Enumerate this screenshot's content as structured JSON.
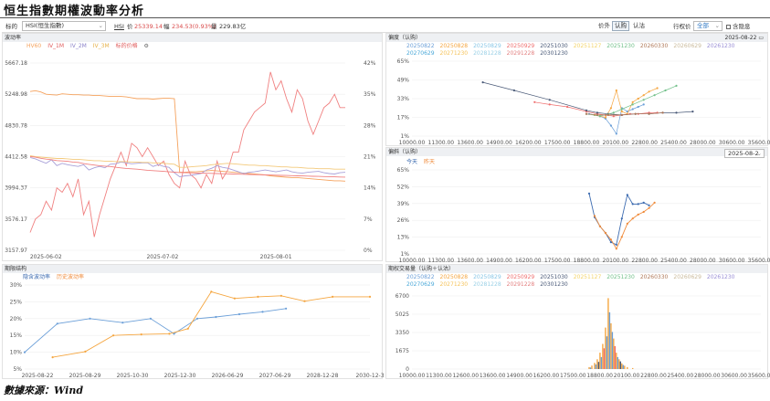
{
  "title": "恒生指數期權波動率分析",
  "footer": "數據來源：Wind",
  "toolbar": {
    "underlying_label": "标的",
    "underlying_value": "HSI(恒生指數)",
    "hsi_label": "HSI",
    "price_label": "价",
    "price_value": "25339.14",
    "change_label": "幅",
    "change_value": "234.53(0.93%)",
    "volume_label": "量",
    "volume_value": "229.83亿",
    "seg_price": "价外",
    "seg_call": "认购",
    "seg_put": "认沽",
    "strike_label": "行权价",
    "strike_value": "全部",
    "expired_label": "含隐息",
    "colors": {
      "accent": "#2f78c4",
      "up": "#d94a4a"
    }
  },
  "vol_panel": {
    "title": "波动率",
    "legend": [
      {
        "name": "HV60",
        "color": "#f5a25d"
      },
      {
        "name": "IV_1M",
        "color": "#f08080"
      },
      {
        "name": "IV_2M",
        "color": "#a9a1d9"
      },
      {
        "name": "IV_3M",
        "color": "#f3c97a"
      },
      {
        "name": "标的价格",
        "color": "#f08080"
      }
    ],
    "gear_icon": "gear-icon"
  },
  "skew_panel": {
    "title": "偏度（认购）",
    "date": "2025-08-22"
  },
  "smile_panel": {
    "title": "偏斜（认购）",
    "date": "2025-08-2",
    "legend": [
      {
        "name": "今天",
        "color": "#3c6bb0"
      },
      {
        "name": "昨天",
        "color": "#f08c3c"
      }
    ]
  },
  "term_panel": {
    "title": "期限结构",
    "legend": [
      {
        "name": "隐含波动率",
        "color": "#6b9fd8"
      },
      {
        "name": "历史波动率",
        "color": "#f5a640"
      }
    ]
  },
  "volume_panel": {
    "title": "期权交易量（认购＋认沽）"
  },
  "expiries": [
    {
      "name": "20250822",
      "color": "#6b9fd8"
    },
    {
      "name": "20250828",
      "color": "#f5a640"
    },
    {
      "name": "20250829",
      "color": "#88c6e6"
    },
    {
      "name": "20250929",
      "color": "#ef6e6e"
    },
    {
      "name": "20251030",
      "color": "#4a5a78"
    },
    {
      "name": "20251127",
      "color": "#f3d46a"
    },
    {
      "name": "20251230",
      "color": "#72c08a"
    },
    {
      "name": "20260330",
      "color": "#b07a5a"
    },
    {
      "name": "20260629",
      "color": "#c9b99a"
    },
    {
      "name": "20261230",
      "color": "#9a8fd6"
    },
    {
      "name": "20270629",
      "color": "#4aa8d8"
    },
    {
      "name": "20271230",
      "color": "#f5c35a"
    },
    {
      "name": "20281228",
      "color": "#9ad0e6"
    },
    {
      "name": "20291228",
      "color": "#e38080"
    },
    {
      "name": "20301230",
      "color": "#4a5a78"
    }
  ],
  "chart_data": [
    {
      "type": "line",
      "name": "vol",
      "x_ticks": [
        "2025-06-02",
        "2025-07-02",
        "2025-08-01"
      ],
      "y_left_ticks": [
        "5667.18",
        "5248.98",
        "4830.78",
        "4412.58",
        "3994.37",
        "3576.17",
        "3157.97"
      ],
      "y_right_ticks": [
        "42%",
        "35%",
        "28%",
        "21%",
        "14%",
        "7%",
        "0%"
      ],
      "ylim_left": [
        3157.97,
        5667.18
      ],
      "ylim_right": [
        0,
        42
      ],
      "n": 60,
      "series": [
        {
          "name": "HV60",
          "axis": "right",
          "color": "#f5a25d",
          "values": [
            35.6,
            35.8,
            35.5,
            35.0,
            34.9,
            34.8,
            35.1,
            35.0,
            34.9,
            34.9,
            34.8,
            34.8,
            34.7,
            34.7,
            34.6,
            34.5,
            34.5,
            34.5,
            34.4,
            34.2,
            34.0,
            34.0,
            34.0,
            33.9,
            34.0,
            34.1,
            34.1,
            34.0,
            17.5,
            17.5,
            17.6,
            17.6,
            17.7,
            17.8,
            17.9,
            17.8,
            17.7,
            17.6,
            17.5,
            17.4,
            17.3,
            17.2,
            17.1,
            17.0,
            16.9,
            16.7,
            16.6,
            16.5,
            16.4,
            16.3,
            16.3,
            16.2,
            16.1,
            16.0,
            15.9,
            15.8,
            15.7,
            15.6,
            15.6,
            15.5
          ]
        },
        {
          "name": "IV_1M",
          "axis": "right",
          "color": "#f08080",
          "values": [
            4,
            7,
            8,
            11,
            9,
            14,
            13,
            15,
            12,
            16,
            8,
            11,
            3,
            8,
            12,
            16,
            19,
            22,
            19,
            24,
            23,
            21,
            23,
            21,
            19,
            20,
            17,
            15,
            14,
            20,
            17,
            16,
            14,
            17,
            15,
            20,
            16,
            18,
            22,
            22,
            27,
            29,
            31,
            32,
            33,
            40,
            36,
            38,
            34,
            31,
            36,
            34,
            29,
            26,
            29,
            32,
            33,
            35,
            32,
            32
          ]
        },
        {
          "name": "IV_2M",
          "axis": "right",
          "color": "#a9a1d9",
          "values": [
            20.8,
            20.5,
            20.0,
            19.5,
            20.3,
            19.0,
            19.5,
            19.2,
            19.0,
            18.8,
            19.2,
            18.0,
            18.5,
            18.8,
            18.5,
            19.3,
            19.4,
            19.8,
            19.6,
            19.4,
            19.5,
            19.6,
            19.6,
            18.8,
            19.2,
            18.8,
            18.6,
            17.4,
            16.5,
            16.7,
            16.8,
            17.0,
            17.2,
            18.0,
            18.4,
            19.0,
            18.6,
            18.4,
            18.0,
            17.6,
            17.2,
            17.5,
            17.6,
            17.8,
            18.0,
            17.8,
            17.6,
            17.8,
            18.0,
            17.6,
            17.4,
            17.3,
            17.5,
            17.6,
            17.7,
            17.4,
            17.2,
            17.1,
            17.4,
            17.5
          ]
        },
        {
          "name": "IV_3M",
          "axis": "right",
          "color": "#f3c97a",
          "values": [
            21.2,
            21.0,
            20.9,
            20.8,
            20.7,
            20.6,
            20.6,
            20.5,
            20.4,
            20.4,
            20.3,
            20.2,
            20.1,
            20.1,
            20.0,
            20.0,
            19.9,
            19.9,
            19.9,
            19.8,
            19.8,
            19.7,
            19.7,
            19.6,
            19.6,
            19.5,
            19.4,
            19.3,
            18.6,
            18.6,
            18.7,
            18.8,
            18.9,
            19.0,
            19.2,
            19.3,
            19.4,
            19.5,
            19.4,
            19.3,
            19.2,
            19.1,
            19.1,
            19.0,
            19.0,
            18.9,
            18.8,
            18.7,
            18.7,
            18.6,
            18.6,
            18.5,
            18.4,
            18.4,
            18.3,
            18.3,
            18.3,
            18.2,
            18.2,
            18.2
          ]
        },
        {
          "name": "标的价格",
          "axis": "left",
          "color": "#f08080",
          "values": [
            4412,
            4405,
            4390,
            4380,
            4372,
            4360,
            4355,
            4350,
            4340,
            4335,
            4320,
            4310,
            4300,
            4292,
            4285,
            4280,
            4270,
            4262,
            4255,
            4250,
            4245,
            4238,
            4230,
            4225,
            4220,
            4215,
            4210,
            4205,
            4200,
            4198,
            4196,
            4194,
            4192,
            4190,
            4188,
            4186,
            4184,
            4182,
            4180,
            4178,
            4176,
            4174,
            4172,
            4170,
            4168,
            4166,
            4164,
            4162,
            4160,
            4158,
            4156,
            4154,
            4152,
            4150,
            4148,
            4146,
            4144,
            4142,
            4140,
            4138
          ]
        }
      ]
    },
    {
      "type": "scatter",
      "name": "skew",
      "x_ticks": [
        "10000.00",
        "11300.00",
        "13600.00",
        "14900.00",
        "16200.00",
        "17500.00",
        "18800.00",
        "20100.00",
        "22800.00",
        "25400.00",
        "28000.00",
        "30600.00",
        "35600.00"
      ],
      "y_ticks": [
        "65%",
        "49%",
        "33%",
        "17%",
        "1%"
      ],
      "xlim": [
        10000,
        35600
      ],
      "ylim": [
        1,
        65
      ],
      "series": [
        {
          "name": "20250822",
          "color": "#6b9fd8",
          "x": [
            23000,
            23400,
            23800,
            24200,
            24600,
            25000,
            25400,
            25800,
            26200,
            26600,
            27000
          ],
          "y": [
            20,
            19,
            18,
            16,
            10,
            3,
            25,
            22,
            24,
            26,
            28
          ]
        },
        {
          "name": "20250828",
          "color": "#f5a640",
          "x": [
            23400,
            23800,
            24200,
            24600,
            25000,
            25400,
            25800,
            26200,
            26600,
            27000,
            27400,
            28000
          ],
          "y": [
            19,
            18,
            17,
            25,
            40,
            22,
            20,
            30,
            33,
            36,
            39,
            42
          ]
        },
        {
          "name": "20250929",
          "color": "#ef6e6e",
          "x": [
            19000,
            20100,
            21400,
            22800,
            23600,
            24200,
            24800,
            25400,
            26000,
            26600,
            27400,
            28000
          ],
          "y": [
            30,
            28,
            26,
            22,
            20,
            19,
            18,
            19,
            20,
            20,
            21,
            21
          ]
        },
        {
          "name": "20251030",
          "color": "#4a5a78",
          "x": [
            15200,
            17500,
            20100,
            22800,
            23600,
            24400,
            25400,
            26400,
            27400,
            28400,
            29400,
            30600
          ],
          "y": [
            47,
            40,
            32,
            23,
            21,
            20,
            19,
            20,
            20,
            21,
            21,
            22
          ]
        },
        {
          "name": "20251230",
          "color": "#72c08a",
          "x": [
            22800,
            23800,
            24800,
            25400,
            26200,
            27000,
            27800,
            28600,
            29400
          ],
          "y": [
            20,
            18,
            21,
            24,
            28,
            32,
            36,
            40,
            44
          ]
        },
        {
          "name": "20260330",
          "color": "#b07a5a",
          "x": [
            22800,
            23600,
            24400,
            25400,
            26400,
            27400,
            28400
          ],
          "y": [
            20,
            19,
            19,
            19,
            20,
            20,
            21
          ]
        }
      ]
    },
    {
      "type": "line",
      "name": "smile",
      "x_ticks": [
        "10000.00",
        "11300.00",
        "13600.00",
        "14900.00",
        "16200.00",
        "17500.00",
        "18800.00",
        "20100.00",
        "22800.00",
        "25400.00",
        "28000.00",
        "30600.00",
        "35600.00"
      ],
      "y_ticks": [
        "65%",
        "52%",
        "39%",
        "26%",
        "13%",
        "1%"
      ],
      "xlim": [
        10000,
        35600
      ],
      "ylim": [
        1,
        65
      ],
      "series": [
        {
          "name": "今天",
          "color": "#3c6bb0",
          "x": [
            23000,
            23400,
            23800,
            24200,
            24600,
            25000,
            25400,
            25800,
            26200,
            26600,
            27000,
            27400
          ],
          "y": [
            47,
            29,
            22,
            17,
            10,
            8,
            28,
            46,
            39,
            39,
            40,
            38
          ]
        },
        {
          "name": "昨天",
          "color": "#f08c3c",
          "x": [
            23400,
            23800,
            24200,
            24600,
            25000,
            25400,
            25800,
            26200,
            26600,
            27000,
            27400,
            27800
          ],
          "y": [
            30,
            22,
            17,
            12,
            5,
            14,
            24,
            28,
            31,
            33,
            36,
            40
          ]
        }
      ]
    },
    {
      "type": "line",
      "name": "term",
      "x_ticks": [
        "2025-08-22",
        "2025-08-29",
        "2025-10-30",
        "2025-12-30",
        "2026-06-29",
        "2027-06-29",
        "2028-12-28",
        "2030-12-3"
      ],
      "y_ticks": [
        "30%",
        "25%",
        "20%",
        "15%",
        "10%",
        "5%"
      ],
      "ylim": [
        5,
        30
      ],
      "series": [
        {
          "name": "隐含波动率",
          "color": "#6b9fd8",
          "x": [
            0,
            0.7,
            1.4,
            2.1,
            2.7,
            3.2,
            3.7,
            4.1,
            4.6,
            5.1,
            5.6
          ],
          "y": [
            10.0,
            18.5,
            20.0,
            18.8,
            20.0,
            15.5,
            20.0,
            20.5,
            21.3,
            22.0,
            23.0
          ]
        },
        {
          "name": "历史波动率",
          "color": "#f5a640",
          "x": [
            0.6,
            1.3,
            1.9,
            2.5,
            3.1,
            3.5,
            4.0,
            4.5,
            5.0,
            5.5,
            6.0,
            6.6,
            7.4
          ],
          "y": [
            8.5,
            10.2,
            15.0,
            15.3,
            15.5,
            17.0,
            28.0,
            26.0,
            26.5,
            26.8,
            25.2,
            26.5,
            26.5
          ]
        }
      ]
    },
    {
      "type": "bar",
      "name": "volume",
      "x_ticks": [
        "10000.00",
        "11300.00",
        "12600.00",
        "13600.00",
        "14900.00",
        "16200.00",
        "17500.00",
        "18800.00",
        "20100.00",
        "22800.00",
        "25400.00",
        "28000.00",
        "30600.00",
        "35600.00"
      ],
      "y_ticks": [
        "6700",
        "5025",
        "3350",
        "1675",
        "0"
      ],
      "ylim": [
        0,
        6700
      ],
      "bars": [
        {
          "x": 23000,
          "v": 180,
          "c": "#f5a640"
        },
        {
          "x": 23200,
          "v": 320,
          "c": "#f5a640"
        },
        {
          "x": 23400,
          "v": 560,
          "c": "#f5a640"
        },
        {
          "x": 23600,
          "v": 900,
          "c": "#f5a640"
        },
        {
          "x": 23800,
          "v": 1500,
          "c": "#f5a640"
        },
        {
          "x": 24000,
          "v": 2300,
          "c": "#f5a640"
        },
        {
          "x": 24200,
          "v": 3800,
          "c": "#f5a640"
        },
        {
          "x": 24400,
          "v": 6500,
          "c": "#f5a640"
        },
        {
          "x": 24600,
          "v": 4200,
          "c": "#f5a640"
        },
        {
          "x": 24800,
          "v": 2800,
          "c": "#f5a640"
        },
        {
          "x": 25000,
          "v": 1500,
          "c": "#f5a640"
        },
        {
          "x": 25200,
          "v": 900,
          "c": "#f5a640"
        },
        {
          "x": 25400,
          "v": 520,
          "c": "#f5a640"
        },
        {
          "x": 25600,
          "v": 300,
          "c": "#f5a640"
        },
        {
          "x": 25800,
          "v": 180,
          "c": "#f5a640"
        },
        {
          "x": 26200,
          "v": 90,
          "c": "#f5a640"
        },
        {
          "x": 23100,
          "v": 140,
          "c": "#6b9fd8"
        },
        {
          "x": 23500,
          "v": 420,
          "c": "#6b9fd8"
        },
        {
          "x": 23900,
          "v": 1100,
          "c": "#6b9fd8"
        },
        {
          "x": 24300,
          "v": 3000,
          "c": "#6b9fd8"
        },
        {
          "x": 24500,
          "v": 5200,
          "c": "#6b9fd8"
        },
        {
          "x": 24700,
          "v": 3400,
          "c": "#6b9fd8"
        },
        {
          "x": 25100,
          "v": 1100,
          "c": "#6b9fd8"
        },
        {
          "x": 25500,
          "v": 380,
          "c": "#6b9fd8"
        },
        {
          "x": 24100,
          "v": 1900,
          "c": "#ef6e6e"
        },
        {
          "x": 24900,
          "v": 2100,
          "c": "#ef6e6e"
        },
        {
          "x": 25300,
          "v": 700,
          "c": "#4a5a78"
        },
        {
          "x": 23700,
          "v": 650,
          "c": "#4a5a78"
        }
      ]
    }
  ]
}
